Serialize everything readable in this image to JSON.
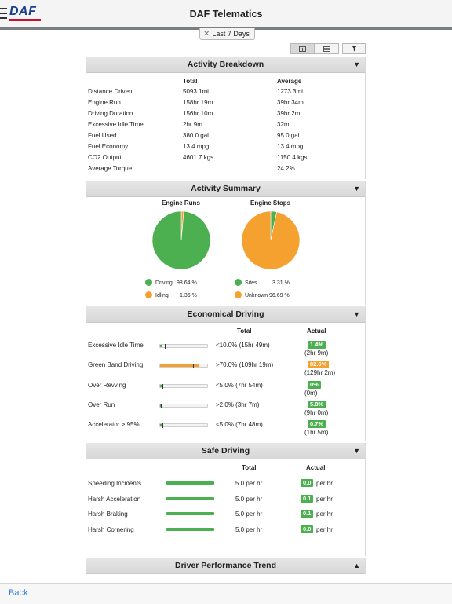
{
  "header": {
    "title": "DAF Telematics",
    "logo_text": "DAF"
  },
  "filter": {
    "label": "Last 7 Days"
  },
  "colors": {
    "green": "#4caf50",
    "orange": "#f5a12f",
    "logo_blue": "#1a3e8c",
    "logo_red": "#c8102e",
    "link_blue": "#2d7fd6"
  },
  "activity_breakdown": {
    "title": "Activity Breakdown",
    "col_total": "Total",
    "col_average": "Average",
    "rows": [
      {
        "label": "Distance Driven",
        "total": "5093.1mi",
        "average": "1273.3mi"
      },
      {
        "label": "Engine Run",
        "total": "158hr 19m",
        "average": "39hr 34m"
      },
      {
        "label": "Driving Duration",
        "total": "156hr 10m",
        "average": "39hr 2m"
      },
      {
        "label": "Excessive Idle Time",
        "total": "2hr 9m",
        "average": "32m"
      },
      {
        "label": "Fuel Used",
        "total": "380.0 gal",
        "average": "95.0 gal"
      },
      {
        "label": "Fuel Economy",
        "total": "13.4 mpg",
        "average": "13.4 mpg"
      },
      {
        "label": "CO2 Output",
        "total": "4601.7 kgs",
        "average": "1150.4 kgs"
      },
      {
        "label": "Average Torque",
        "total": "",
        "average": "24.2%"
      }
    ]
  },
  "activity_summary": {
    "title": "Activity Summary",
    "engine_runs": {
      "title": "Engine Runs",
      "slices": [
        {
          "name": "Driving",
          "value": "98.64 %",
          "percent": 98.64,
          "color": "#4caf50"
        },
        {
          "name": "Idling",
          "value": "1.36 %",
          "percent": 1.36,
          "color": "#f5a12f"
        }
      ]
    },
    "engine_stops": {
      "title": "Engine Stops",
      "slices": [
        {
          "name": "Sites",
          "value": "3.31 %",
          "percent": 3.31,
          "color": "#4caf50"
        },
        {
          "name": "Unknown",
          "value": "96.69 %",
          "percent": 96.69,
          "color": "#f5a12f"
        }
      ]
    }
  },
  "economical_driving": {
    "title": "Economical Driving",
    "col_total": "Total",
    "col_actual": "Actual",
    "rows": [
      {
        "label": "Excessive Idle Time",
        "total": "<10.0% (15hr 49m)",
        "actual_badge": "1.4%",
        "actual_sub": "(2hr 9m)",
        "fill": 0.014,
        "target": 0.1,
        "color": "#4caf50"
      },
      {
        "label": "Green Band Driving",
        "total": ">70.0% (109hr 19m)",
        "actual_badge": "82.6%",
        "actual_sub": "(129hr 2m)",
        "fill": 0.826,
        "target": 0.7,
        "color": "#f5a12f"
      },
      {
        "label": "Over Revving",
        "total": "<5.0% (7hr 54m)",
        "actual_badge": "0%",
        "actual_sub": "(0m)",
        "fill": 0.0,
        "target": 0.05,
        "color": "#4caf50"
      },
      {
        "label": "Over Run",
        "total": ">2.0% (3hr 7m)",
        "actual_badge": "5.8%",
        "actual_sub": "(9hr 0m)",
        "fill": 0.058,
        "target": 0.02,
        "color": "#4caf50"
      },
      {
        "label": "Accelerator > 95%",
        "total": "<5.0% (7hr 48m)",
        "actual_badge": "0.7%",
        "actual_sub": "(1hr 5m)",
        "fill": 0.007,
        "target": 0.05,
        "color": "#4caf50"
      }
    ]
  },
  "safe_driving": {
    "title": "Safe Driving",
    "col_total": "Total",
    "col_actual": "Actual",
    "rows": [
      {
        "label": "Speeding Incidents",
        "total": "5.0 per hr",
        "actual_badge": "0.0",
        "actual_unit": "per hr"
      },
      {
        "label": "Harsh Acceleration",
        "total": "5.0 per hr",
        "actual_badge": "0.1",
        "actual_unit": "per hr"
      },
      {
        "label": "Harsh Braking",
        "total": "5.0 per hr",
        "actual_badge": "0.1",
        "actual_unit": "per hr"
      },
      {
        "label": "Harsh Cornering",
        "total": "5.0 per hr",
        "actual_badge": "0.0",
        "actual_unit": "per hr"
      }
    ]
  },
  "driver_performance": {
    "title": "Driver Performance Trend"
  },
  "footer": {
    "back_label": "Back"
  }
}
